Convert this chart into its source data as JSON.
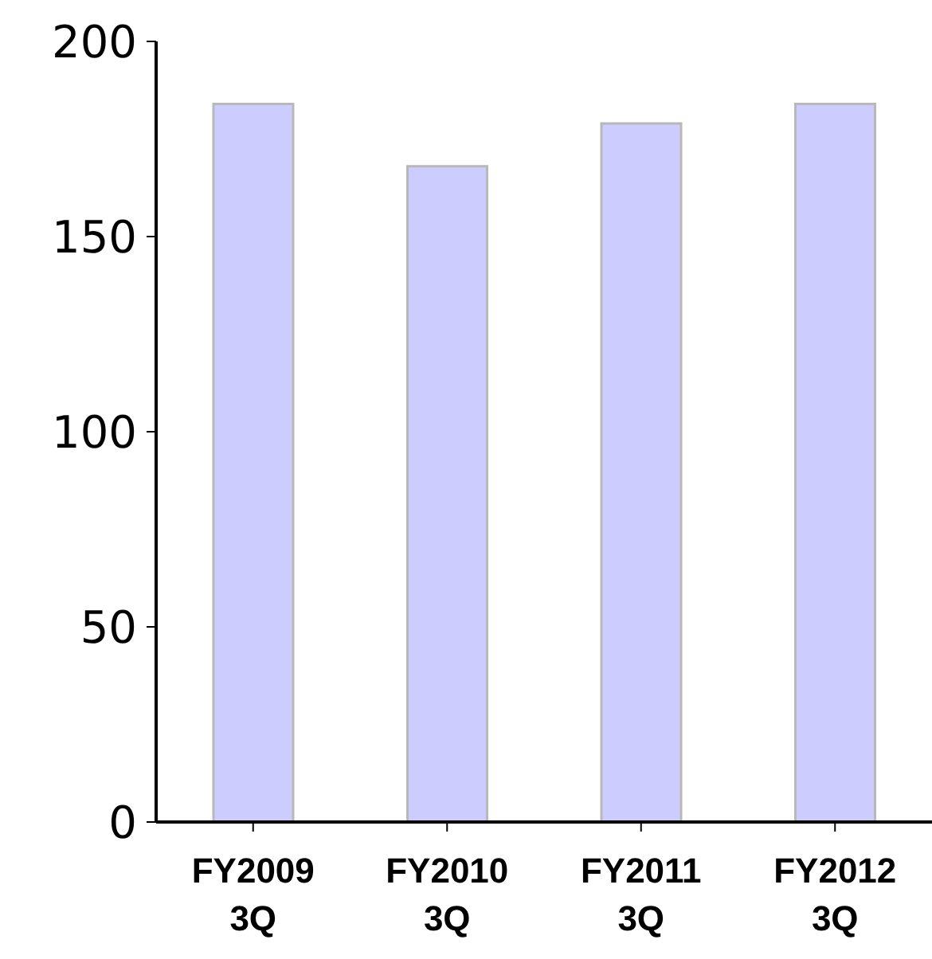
{
  "chart_data": {
    "type": "bar",
    "categories": [
      "FY2009\n3Q",
      "FY2010\n3Q",
      "FY2011\n3Q",
      "FY2012\n3Q"
    ],
    "values": [
      184,
      168,
      179,
      184
    ],
    "color": "#ccccff",
    "ylim": [
      0,
      200
    ],
    "yticks": [
      0,
      50,
      100,
      150,
      200
    ],
    "grid": false,
    "legend": false
  }
}
